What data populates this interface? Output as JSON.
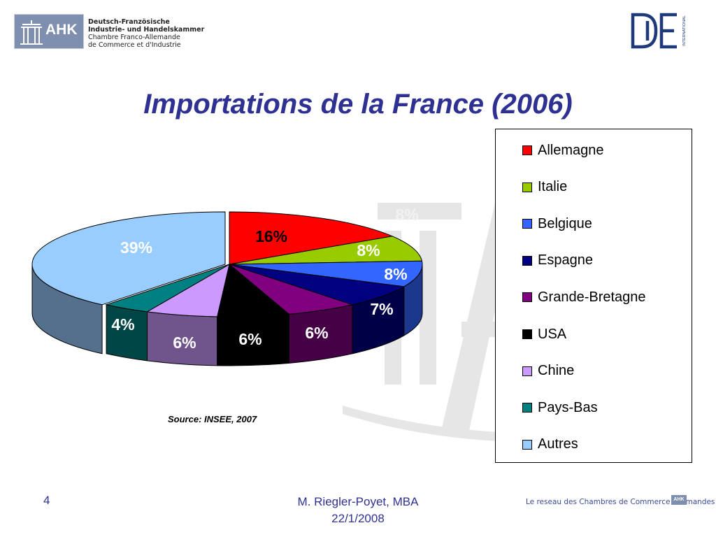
{
  "header": {
    "ahk_logo": {
      "mark": "AHK",
      "lines": [
        "Deutsch-Französische",
        "Industrie- und Handelskammer",
        "Chambre Franco-Allemande",
        "de Commerce et d'Industrie"
      ]
    },
    "de_logo": {
      "mark": "DE",
      "subtitle": "INTERNATIONAL"
    }
  },
  "title": "Importations de la France (2006)",
  "source": "Source: INSEE, 2007",
  "chart_data": {
    "type": "pie",
    "title": "Importations de la France (2006)",
    "style": "3d-exploded",
    "legend_position": "right",
    "slices": [
      {
        "name": "Allemagne",
        "value": 16,
        "label": "16%",
        "color": "#ff0000",
        "label_color": "#000000"
      },
      {
        "name": "Italie",
        "value": 8,
        "label": "8%",
        "color": "#99cc00",
        "label_color": "#ffffff"
      },
      {
        "name": "Belgique",
        "value": 8,
        "label": "8%",
        "color": "#3366ff",
        "label_color": "#ffffff"
      },
      {
        "name": "Espagne",
        "value": 7,
        "label": "7%",
        "color": "#000080",
        "label_color": "#ffffff"
      },
      {
        "name": "Grande-Bretagne",
        "value": 6,
        "label": "6%",
        "color": "#800080",
        "label_color": "#ffffff"
      },
      {
        "name": "USA",
        "value": 6,
        "label": "6%",
        "color": "#000000",
        "label_color": "#ffffff"
      },
      {
        "name": "Chine",
        "value": 6,
        "label": "6%",
        "color": "#cc99ff",
        "label_color": "#ffffff"
      },
      {
        "name": "Pays-Bas",
        "value": 4,
        "label": "4%",
        "color": "#008080",
        "label_color": "#ffffff"
      },
      {
        "name": "Autres",
        "value": 39,
        "label": "39%",
        "color": "#99ccff",
        "label_color": "#ffffff"
      }
    ],
    "ghost_label": "8%"
  },
  "footer": {
    "page": "4",
    "author": "M. Riegler-Poyet, MBA",
    "date": "22/1/2008",
    "network": "Le reseau des Chambres de Commerce allemandes",
    "network_logo": "AHK"
  }
}
